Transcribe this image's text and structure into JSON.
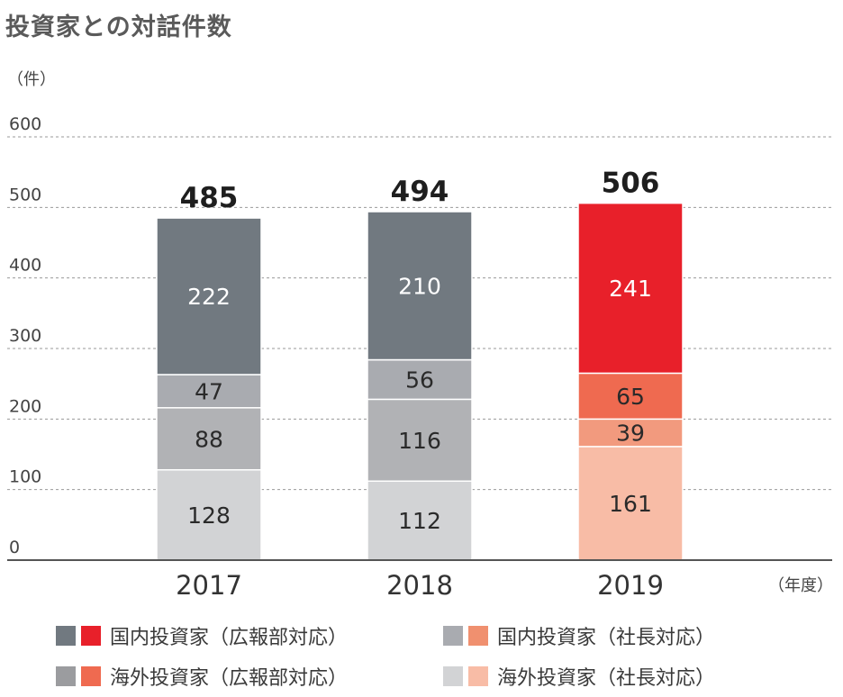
{
  "title": "投資家との対話件数",
  "unit_label": "（件）",
  "x_unit_label": "（年度）",
  "colors": {
    "domestic_pr_gray": "#717980",
    "domestic_pr_red": "#e8202a",
    "domestic_exec_gray": "#a9abb0",
    "domestic_exec_red": "#f0906f",
    "overseas_pr_gray": "#9b9c9f",
    "overseas_pr_red": "#ef6a50",
    "overseas_exec_gray": "#d2d3d5",
    "overseas_exec_red": "#f8bca6",
    "grid": "#9a9a9a",
    "axis": "#555555"
  },
  "legend": [
    {
      "label": "国内投資家（広報部対応）",
      "gray": "#717980",
      "red": "#e8202a"
    },
    {
      "label": "国内投資家（社長対応）",
      "gray": "#a9abb0",
      "red": "#f0906f"
    },
    {
      "label": "海外投資家（広報部対応）",
      "gray": "#9b9c9f",
      "red": "#ef6a50"
    },
    {
      "label": "海外投資家（社長対応）",
      "gray": "#d2d3d5",
      "red": "#f8bca6"
    }
  ],
  "chart_data": {
    "type": "bar",
    "stacked": true,
    "title": "投資家との対話件数",
    "ylabel": "（件）",
    "xlabel": "（年度）",
    "ylim": [
      0,
      600
    ],
    "yticks": [
      0,
      100,
      200,
      300,
      400,
      500,
      600
    ],
    "grid": true,
    "categories": [
      "2017",
      "2018",
      "2019"
    ],
    "totals": [
      "485",
      "494",
      "506"
    ],
    "series": [
      {
        "name": "海外投資家（社長対応）",
        "values": [
          128,
          112,
          161
        ],
        "colors": [
          "#d2d3d5",
          "#d2d3d5",
          "#f8bca6"
        ]
      },
      {
        "name": "海外投資家（広報部対応）",
        "values": [
          88,
          116,
          39
        ],
        "colors": [
          "#b1b2b5",
          "#b1b2b5",
          "#f29a7e"
        ]
      },
      {
        "name": "国内投資家（社長対応）",
        "values": [
          47,
          56,
          65
        ],
        "colors": [
          "#a9abb0",
          "#a9abb0",
          "#ef6a50"
        ]
      },
      {
        "name": "国内投資家（広報部対応）",
        "values": [
          222,
          210,
          241
        ],
        "colors": [
          "#717980",
          "#717980",
          "#e8202a"
        ]
      }
    ]
  }
}
